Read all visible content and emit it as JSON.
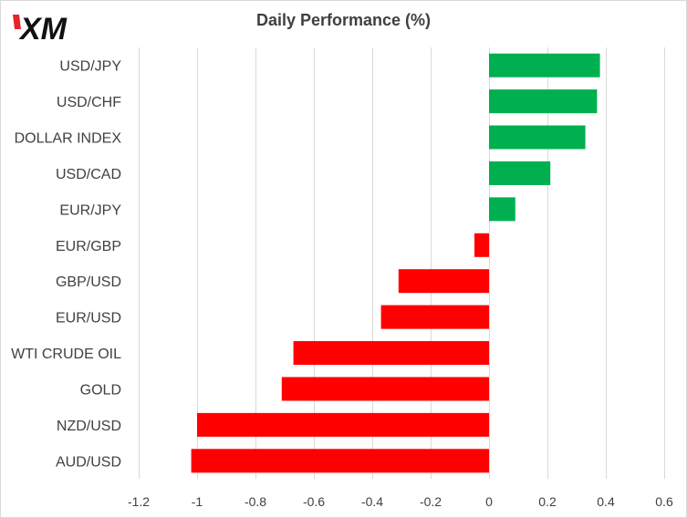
{
  "brand": {
    "logo_text": "XM"
  },
  "chart_data": {
    "type": "bar",
    "orientation": "horizontal",
    "title": "Daily Performance  (%)",
    "categories": [
      "USD/JPY",
      "USD/CHF",
      "DOLLAR INDEX",
      "USD/CAD",
      "EUR/JPY",
      "EUR/GBP",
      "GBP/USD",
      "EUR/USD",
      "WTI CRUDE OIL",
      "GOLD",
      "NZD/USD",
      "AUD/USD"
    ],
    "values": [
      0.38,
      0.37,
      0.33,
      0.21,
      0.09,
      -0.05,
      -0.31,
      -0.37,
      -0.67,
      -0.71,
      -1.0,
      -1.02
    ],
    "xlim": [
      -1.2,
      0.6
    ],
    "xticks": [
      -1.2,
      -1,
      -0.8,
      -0.6,
      -0.4,
      -0.2,
      0,
      0.2,
      0.4,
      0.6
    ],
    "xtick_labels": [
      "-1.2",
      "-1",
      "-0.8",
      "-0.6",
      "-0.4",
      "-0.2",
      "0",
      "0.2",
      "0.4",
      "0.6"
    ],
    "grid": "vertical",
    "legend": "none",
    "colors": {
      "positive": "#00b050",
      "negative": "#ff0000",
      "grid": "#d9d9d9",
      "text": "#404040"
    }
  }
}
